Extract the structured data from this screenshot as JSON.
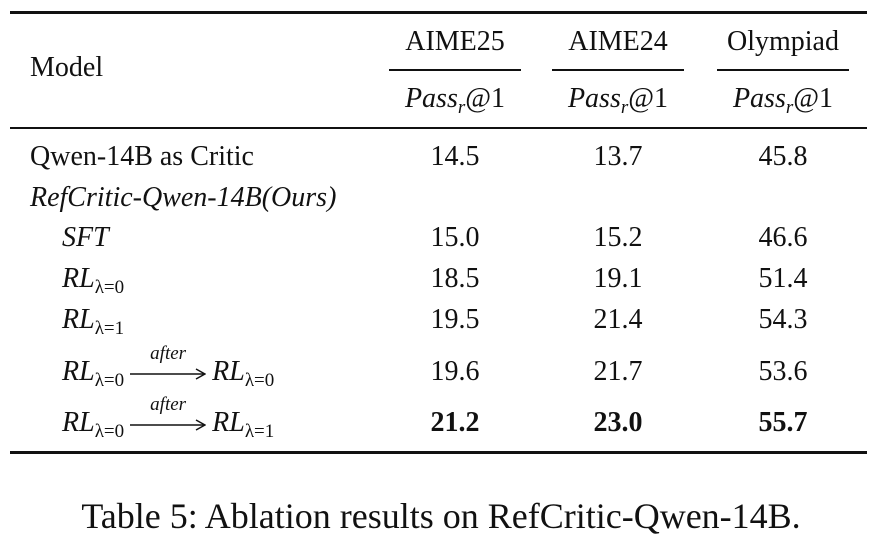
{
  "table": {
    "header": {
      "model": "Model",
      "columns": [
        {
          "name": "AIME25",
          "metric": {
            "base": "Pass",
            "sub": "r",
            "suffix": "@1"
          }
        },
        {
          "name": "AIME24",
          "metric": {
            "base": "Pass",
            "sub": "r",
            "suffix": "@1"
          }
        },
        {
          "name": "Olympiad",
          "metric": {
            "base": "Pass",
            "sub": "r",
            "suffix": "@1"
          }
        }
      ]
    },
    "rows": [
      {
        "label": "Qwen-14B as Critic",
        "values": [
          "14.5",
          "13.7",
          "45.8"
        ]
      },
      {
        "label": "RefCritic-Qwen-14B(Ours)"
      },
      {
        "label": {
          "base": "SFT"
        },
        "values": [
          "15.0",
          "15.2",
          "46.6"
        ]
      },
      {
        "label": {
          "base": "RL",
          "sub": "λ=0"
        },
        "values": [
          "18.5",
          "19.1",
          "51.4"
        ]
      },
      {
        "label": {
          "base": "RL",
          "sub": "λ=1"
        },
        "values": [
          "19.5",
          "21.4",
          "54.3"
        ]
      },
      {
        "label": {
          "base": "RL",
          "sub": "λ=0",
          "arrow": "after",
          "target_base": "RL",
          "target_sub": "λ=0"
        },
        "values": [
          "19.6",
          "21.7",
          "53.6"
        ]
      },
      {
        "label": {
          "base": "RL",
          "sub": "λ=0",
          "arrow": "after",
          "target_base": "RL",
          "target_sub": "λ=1"
        },
        "values": [
          "21.2",
          "23.0",
          "55.7"
        ]
      }
    ]
  },
  "caption": "Table 5: Ablation results on RefCritic-Qwen-14B."
}
